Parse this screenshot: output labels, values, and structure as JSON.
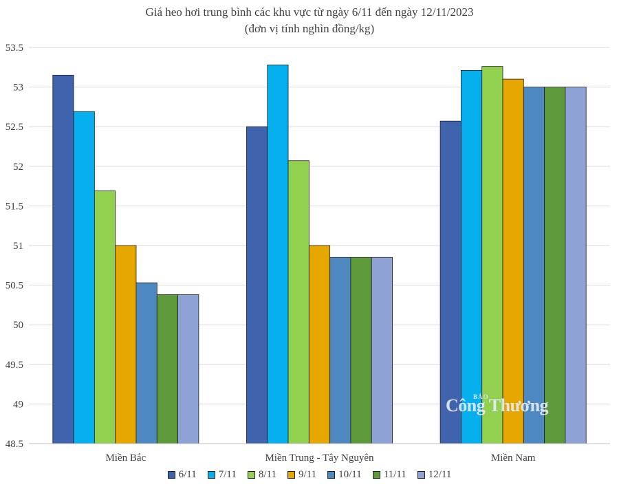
{
  "chart_data": {
    "type": "bar",
    "title": "Giá heo hơi trung bình các khu vực từ ngày 6/11 đến ngày 12/11/2023",
    "subtitle": "(đơn vị tính nghìn đồng/kg)",
    "xlabel": "",
    "ylabel": "",
    "ylim": [
      48.5,
      53.5
    ],
    "ytick_step": 0.5,
    "yticks": [
      "48.5",
      "49",
      "49.5",
      "50",
      "50.5",
      "51",
      "51.5",
      "52",
      "52.5",
      "53",
      "53.5"
    ],
    "grid": true,
    "legend_position": "bottom",
    "categories": [
      "Miền Bắc",
      "Miền Trung - Tây Nguyên",
      "Miền Nam"
    ],
    "series": [
      {
        "name": "6/11",
        "color": "#3f63ad",
        "values": [
          53.15,
          52.5,
          52.57
        ]
      },
      {
        "name": "7/11",
        "color": "#06b0ef",
        "values": [
          52.69,
          53.28,
          53.21
        ]
      },
      {
        "name": "8/11",
        "color": "#92d050",
        "values": [
          51.69,
          52.07,
          53.26
        ]
      },
      {
        "name": "9/11",
        "color": "#e6a700",
        "values": [
          51.0,
          51.0,
          53.1
        ]
      },
      {
        "name": "10/11",
        "color": "#4d88c1",
        "values": [
          50.53,
          50.85,
          53.0
        ]
      },
      {
        "name": "11/11",
        "color": "#5e9a3c",
        "values": [
          50.38,
          50.85,
          53.0
        ]
      },
      {
        "name": "12/11",
        "color": "#8fa2d6",
        "values": [
          50.38,
          50.85,
          53.0
        ]
      }
    ]
  },
  "watermark": {
    "small": "BÁO",
    "big": "Công Thương"
  }
}
